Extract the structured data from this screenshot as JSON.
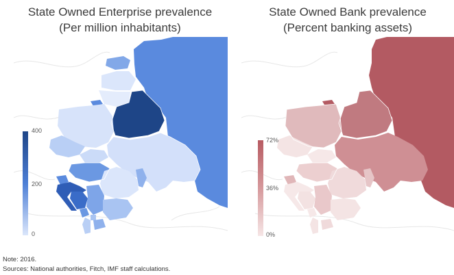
{
  "panels": [
    {
      "title_line1": "State Owned Enterprise prevalence",
      "title_line2": "(Per million inhabitants)",
      "legend_ticks": [
        "400",
        "200",
        "0"
      ],
      "colors": {
        "high": "#1e4587",
        "mid": "#4d7fd6",
        "low": "#dbe6fb"
      }
    },
    {
      "title_line1": "State Owned Bank prevalence",
      "title_line2": "(Percent banking assets)",
      "legend_ticks": [
        "72%",
        "36%",
        "0%"
      ],
      "colors": {
        "high": "#b75b62",
        "mid": "#d6999c",
        "low": "#f6e6e6"
      }
    }
  ],
  "notes": {
    "line1": "Note: 2016.",
    "line2": "Sources: National authorities, Fitch, IMF staff calculations."
  }
}
